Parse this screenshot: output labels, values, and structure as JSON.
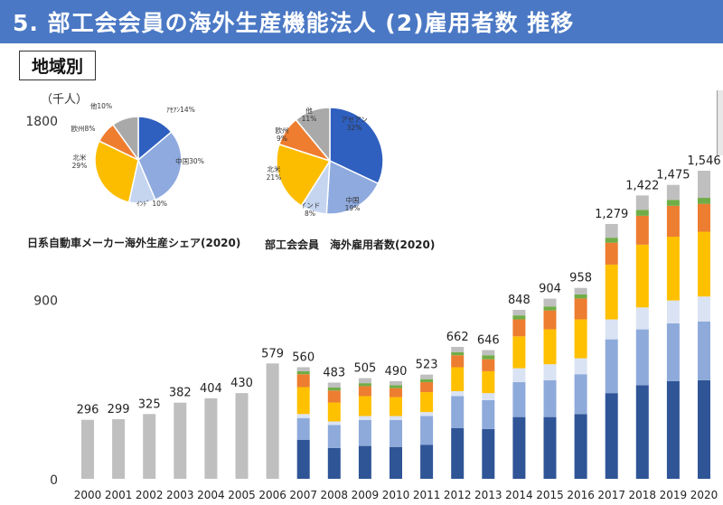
{
  "header": {
    "title": "5. 部工会会員の海外生産機能法人 (2)雇用者数 推移",
    "region_label": "地域別",
    "unit": "（千人）"
  },
  "pies": [
    {
      "caption": "日系自動車メーカー海外生産シェア(2020)",
      "slices": [
        {
          "name": "アセアン",
          "label": "ｱｾｱﾝ14%",
          "value": 14,
          "color": "#2f5fbf"
        },
        {
          "name": "中国",
          "label": "中国30%",
          "value": 30,
          "color": "#8eaade"
        },
        {
          "name": "インド",
          "label": "ｲﾝﾄﾞ 10%",
          "value": 10,
          "color": "#c5d5f0"
        },
        {
          "name": "北米",
          "label": "北米\n29%",
          "value": 29,
          "color": "#fcbd00"
        },
        {
          "name": "欧州",
          "label": "欧州8%",
          "value": 8,
          "color": "#ee7d2f"
        },
        {
          "name": "他",
          "label": "他10%",
          "value": 10,
          "color": "#a9a9a9"
        }
      ]
    },
    {
      "caption": "部工会会員　海外雇用者数(2020)",
      "slices": [
        {
          "name": "アセアン",
          "label": "アセアン\n32%",
          "value": 32,
          "color": "#2f5fbf"
        },
        {
          "name": "中国",
          "label": "中国\n19%",
          "value": 19,
          "color": "#8eaade"
        },
        {
          "name": "インド",
          "label": "インド\n8%",
          "value": 8,
          "color": "#c5d5f0"
        },
        {
          "name": "北米",
          "label": "北米\n21%",
          "value": 21,
          "color": "#fcbd00"
        },
        {
          "name": "欧州",
          "label": "欧州\n9%",
          "value": 9,
          "color": "#ee7d2f"
        },
        {
          "name": "他",
          "label": "他\n11%",
          "value": 11,
          "color": "#a9a9a9"
        }
      ]
    }
  ],
  "chart_data": {
    "type": "bar",
    "stacked": true,
    "ylim": [
      0,
      1800
    ],
    "yticks": [
      "0",
      "900",
      "1800"
    ],
    "categories": [
      "2000",
      "2001",
      "2002",
      "2003",
      "2004",
      "2005",
      "2006",
      "2007",
      "2008",
      "2009",
      "2010",
      "2011",
      "2012",
      "2013",
      "2014",
      "2015",
      "2016",
      "2017",
      "2018",
      "2019",
      "2020"
    ],
    "totals": [
      296,
      299,
      325,
      382,
      404,
      430,
      579,
      560,
      483,
      505,
      490,
      523,
      662,
      646,
      848,
      904,
      958,
      1279,
      1422,
      1475,
      1546
    ],
    "total_labels": [
      "296",
      "299",
      "325",
      "382",
      "404",
      "430",
      "579",
      "560",
      "483",
      "505",
      "490",
      "523",
      "662",
      "646",
      "848",
      "904",
      "958",
      "1,279",
      "1,422",
      "1,475",
      "1,546"
    ],
    "series_colors": {
      "total": "#bfbfbf",
      "asean": "#2f5597",
      "china": "#8eaadb",
      "india": "#dae3f3",
      "north_america": "#ffc000",
      "europe": "#ed7d31",
      "green": "#70ad47",
      "other": "#bfbfbf"
    },
    "stacks": [
      null,
      null,
      null,
      null,
      null,
      null,
      null,
      {
        "asean": 195,
        "china": 110,
        "india": 20,
        "north_america": 135,
        "europe": 65,
        "green": 15,
        "other": 20
      },
      {
        "asean": 155,
        "china": 115,
        "india": 18,
        "north_america": 95,
        "europe": 60,
        "green": 15,
        "other": 25
      },
      {
        "asean": 165,
        "china": 130,
        "india": 20,
        "north_america": 100,
        "europe": 50,
        "green": 15,
        "other": 25
      },
      {
        "asean": 160,
        "china": 135,
        "india": 20,
        "north_america": 95,
        "europe": 45,
        "green": 15,
        "other": 20
      },
      {
        "asean": 170,
        "china": 145,
        "india": 20,
        "north_america": 100,
        "europe": 50,
        "green": 15,
        "other": 23
      },
      {
        "asean": 255,
        "china": 160,
        "india": 25,
        "north_america": 120,
        "europe": 60,
        "green": 15,
        "other": 27
      },
      {
        "asean": 250,
        "china": 145,
        "india": 35,
        "north_america": 110,
        "europe": 60,
        "green": 20,
        "other": 26
      },
      {
        "asean": 310,
        "china": 175,
        "india": 70,
        "north_america": 160,
        "europe": 85,
        "green": 20,
        "other": 28
      },
      {
        "asean": 310,
        "china": 185,
        "india": 80,
        "north_america": 175,
        "europe": 95,
        "green": 20,
        "other": 39
      },
      {
        "asean": 325,
        "china": 200,
        "india": 80,
        "north_america": 195,
        "europe": 105,
        "green": 20,
        "other": 33
      },
      {
        "asean": 430,
        "china": 270,
        "india": 100,
        "north_america": 275,
        "europe": 110,
        "green": 25,
        "other": 69
      },
      {
        "asean": 470,
        "china": 280,
        "india": 110,
        "north_america": 315,
        "europe": 145,
        "green": 30,
        "other": 72
      },
      {
        "asean": 490,
        "china": 290,
        "india": 115,
        "north_america": 320,
        "europe": 155,
        "green": 30,
        "other": 75
      },
      {
        "asean": 495,
        "china": 295,
        "india": 125,
        "north_america": 325,
        "europe": 140,
        "green": 30,
        "other": 136
      }
    ]
  }
}
